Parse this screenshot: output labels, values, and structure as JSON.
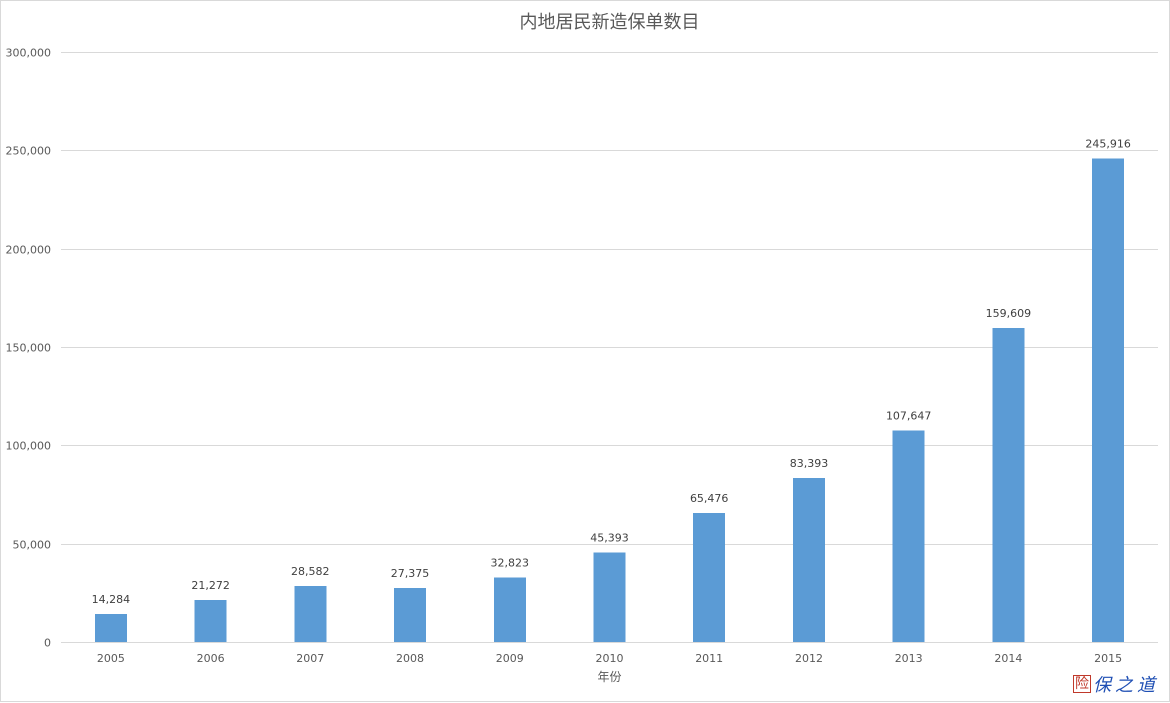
{
  "chart_data": {
    "type": "bar",
    "title": "内地居民新造保单数目",
    "xlabel": "年份",
    "ylabel": "",
    "categories": [
      "2005",
      "2006",
      "2007",
      "2008",
      "2009",
      "2010",
      "2011",
      "2012",
      "2013",
      "2014",
      "2015"
    ],
    "values": [
      14284,
      21272,
      28582,
      27375,
      32823,
      45393,
      65476,
      83393,
      107647,
      159609,
      245916
    ],
    "value_labels": [
      "14,284",
      "21,272",
      "28,582",
      "27,375",
      "32,823",
      "45,393",
      "65,476",
      "83,393",
      "107,647",
      "159,609",
      "245,916"
    ],
    "ylim": [
      0,
      300000
    ],
    "yticks": [
      0,
      50000,
      100000,
      150000,
      200000,
      250000,
      300000
    ],
    "ytick_labels": [
      "0",
      "50,000",
      "100,000",
      "150,000",
      "200,000",
      "250,000",
      "300,000"
    ],
    "grid": true,
    "legend": "none",
    "bar_color": "#5b9bd5"
  },
  "watermark": {
    "seal": "险",
    "text": "保之道"
  }
}
